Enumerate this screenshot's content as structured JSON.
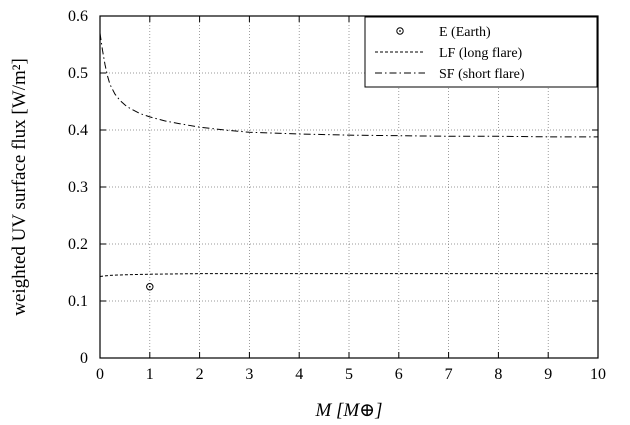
{
  "chart_data": {
    "type": "line",
    "xlabel": "M [M⊕]",
    "ylabel": "weighted UV surface flux [W/m²]",
    "xlim": [
      0,
      10
    ],
    "ylim": [
      0,
      0.6
    ],
    "x_ticks": [
      0,
      1,
      2,
      3,
      4,
      5,
      6,
      7,
      8,
      9,
      10
    ],
    "y_ticks": [
      0,
      0.1,
      0.2,
      0.3,
      0.4,
      0.5,
      0.6
    ],
    "x_tick_labels": [
      "0",
      "1",
      "2",
      "3",
      "4",
      "5",
      "6",
      "7",
      "8",
      "9",
      "10"
    ],
    "y_tick_labels": [
      "0",
      "0.1",
      "0.2",
      "0.3",
      "0.4",
      "0.5",
      "0.6"
    ],
    "grid": true,
    "legend_position": "top-right",
    "series": [
      {
        "name": "E (Earth)",
        "style": "marker-circle",
        "x": [
          1.0
        ],
        "y": [
          0.125
        ]
      },
      {
        "name": "LF (long flare)",
        "style": "dashed",
        "x": [
          0.0,
          0.2,
          0.5,
          1.0,
          1.5,
          2.0,
          3.0,
          4.0,
          5.0,
          6.0,
          7.0,
          8.0,
          9.0,
          10.0
        ],
        "y": [
          0.143,
          0.145,
          0.146,
          0.147,
          0.1475,
          0.148,
          0.148,
          0.148,
          0.148,
          0.148,
          0.148,
          0.148,
          0.148,
          0.148
        ]
      },
      {
        "name": "SF (short flare)",
        "style": "dash-dot",
        "x": [
          0.0,
          0.05,
          0.1,
          0.15,
          0.2,
          0.3,
          0.4,
          0.5,
          0.6,
          0.8,
          1.0,
          1.3,
          1.6,
          2.0,
          2.5,
          3.0,
          4.0,
          5.0,
          6.0,
          7.0,
          8.0,
          9.0,
          10.0
        ],
        "y": [
          0.57,
          0.54,
          0.515,
          0.495,
          0.48,
          0.463,
          0.452,
          0.444,
          0.438,
          0.429,
          0.423,
          0.416,
          0.411,
          0.405,
          0.4,
          0.396,
          0.393,
          0.391,
          0.39,
          0.389,
          0.389,
          0.388,
          0.388
        ]
      }
    ]
  }
}
